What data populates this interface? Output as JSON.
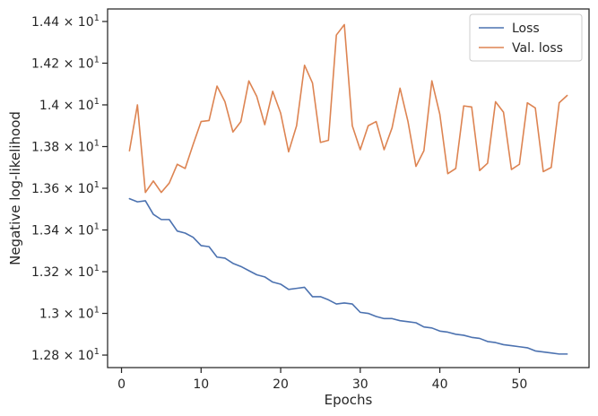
{
  "chart_data": {
    "type": "line",
    "title": "",
    "xlabel": "Epochs",
    "ylabel": "Negative log-likelihood",
    "xlim": [
      -1.75,
      58.75
    ],
    "ylim": [
      12.74,
      14.46
    ],
    "x_ticks": [
      {
        "value": 0,
        "label": "0"
      },
      {
        "value": 10,
        "label": "10"
      },
      {
        "value": 20,
        "label": "20"
      },
      {
        "value": 30,
        "label": "30"
      },
      {
        "value": 40,
        "label": "40"
      },
      {
        "value": 50,
        "label": "50"
      }
    ],
    "y_ticks": [
      {
        "value": 12.8,
        "mantissa": "1.28",
        "base": "10",
        "exp": "1"
      },
      {
        "value": 13.0,
        "mantissa": "1.3",
        "base": "10",
        "exp": "1"
      },
      {
        "value": 13.2,
        "mantissa": "1.32",
        "base": "10",
        "exp": "1"
      },
      {
        "value": 13.4,
        "mantissa": "1.34",
        "base": "10",
        "exp": "1"
      },
      {
        "value": 13.6,
        "mantissa": "1.36",
        "base": "10",
        "exp": "1"
      },
      {
        "value": 13.8,
        "mantissa": "1.38",
        "base": "10",
        "exp": "1"
      },
      {
        "value": 14.0,
        "mantissa": "1.4",
        "base": "10",
        "exp": "1"
      },
      {
        "value": 14.2,
        "mantissa": "1.42",
        "base": "10",
        "exp": "1"
      },
      {
        "value": 14.4,
        "mantissa": "1.44",
        "base": "10",
        "exp": "1"
      }
    ],
    "grid": false,
    "legend_position": "top-right",
    "x": [
      1,
      2,
      3,
      4,
      5,
      6,
      7,
      8,
      9,
      10,
      11,
      12,
      13,
      14,
      15,
      16,
      17,
      18,
      19,
      20,
      21,
      22,
      23,
      24,
      25,
      26,
      27,
      28,
      29,
      30,
      31,
      32,
      33,
      34,
      35,
      36,
      37,
      38,
      39,
      40,
      41,
      42,
      43,
      44,
      45,
      46,
      47,
      48,
      49,
      50,
      51,
      52,
      53,
      54,
      55,
      56
    ],
    "series": [
      {
        "name": "Loss",
        "color": "#4c72b0",
        "values": [
          13.55,
          13.535,
          13.54,
          13.475,
          13.45,
          13.45,
          13.395,
          13.385,
          13.365,
          13.325,
          13.32,
          13.27,
          13.265,
          13.24,
          13.225,
          13.205,
          13.185,
          13.175,
          13.15,
          13.14,
          13.115,
          13.12,
          13.125,
          13.08,
          13.08,
          13.065,
          13.045,
          13.05,
          13.045,
          13.005,
          13.0,
          12.985,
          12.975,
          12.975,
          12.965,
          12.96,
          12.955,
          12.935,
          12.93,
          12.915,
          12.91,
          12.9,
          12.895,
          12.885,
          12.88,
          12.865,
          12.86,
          12.85,
          12.845,
          12.84,
          12.835,
          12.82,
          12.815,
          12.81,
          12.805,
          12.805
        ]
      },
      {
        "name": "Val. loss",
        "color": "#dd8452",
        "values": [
          13.78,
          14.0,
          13.58,
          13.635,
          13.58,
          13.625,
          13.715,
          13.695,
          13.81,
          13.92,
          13.925,
          14.09,
          14.015,
          13.87,
          13.92,
          14.115,
          14.04,
          13.905,
          14.065,
          13.96,
          13.775,
          13.9,
          14.19,
          14.105,
          13.82,
          13.83,
          14.335,
          14.385,
          13.9,
          13.785,
          13.9,
          13.92,
          13.785,
          13.89,
          14.08,
          13.92,
          13.705,
          13.78,
          14.115,
          13.955,
          13.67,
          13.695,
          13.995,
          13.99,
          13.685,
          13.72,
          14.015,
          13.965,
          13.69,
          13.715,
          14.01,
          13.985,
          13.68,
          13.7,
          14.01,
          14.045
        ]
      }
    ]
  }
}
